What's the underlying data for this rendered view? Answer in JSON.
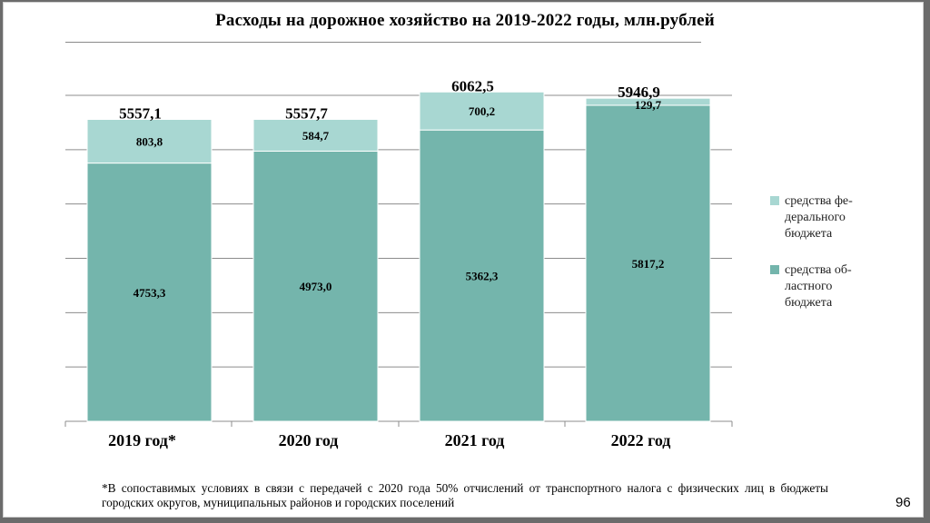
{
  "slide": {
    "title": "Расходы на дорожное хозяйство на 2019-2022 годы, млн.рублей",
    "footnote": "*В сопоставимых условиях в связи с передачей с 2020 года 50% отчислений от транспортного налога с физических лиц в бюджеты городских округов, муниципальных районов и городских поселений",
    "page_number": "96"
  },
  "chart_data": {
    "type": "bar",
    "stacked": true,
    "title": "Расходы на дорожное хозяйство на 2019-2022 годы, млн.рублей",
    "categories": [
      "2019 год*",
      "2020 год",
      "2021 год",
      "2022 год"
    ],
    "series": [
      {
        "name": "средства областного бюджета",
        "legend_label": "средства об-\nластного\nбюджета",
        "color": "#74b5ac",
        "values": [
          4753.3,
          4973.0,
          5362.3,
          5817.2
        ],
        "labels": [
          "4753,3",
          "4973,0",
          "5362,3",
          "5817,2"
        ]
      },
      {
        "name": "средства федерального бюджета",
        "legend_label": "средства фе-\nдерального\nбюджета",
        "color": "#a8d7d2",
        "values": [
          803.8,
          584.7,
          700.2,
          129.7
        ],
        "labels": [
          "803,8",
          "584,7",
          "700,2",
          "129,7"
        ]
      }
    ],
    "totals": [
      5557.1,
      5557.7,
      6062.5,
      5946.9
    ],
    "total_labels": [
      "5557,1",
      "5557,7",
      "6062,5",
      "5946,9"
    ],
    "ylim": [
      0,
      6000
    ],
    "grid": true,
    "legend": "right"
  }
}
